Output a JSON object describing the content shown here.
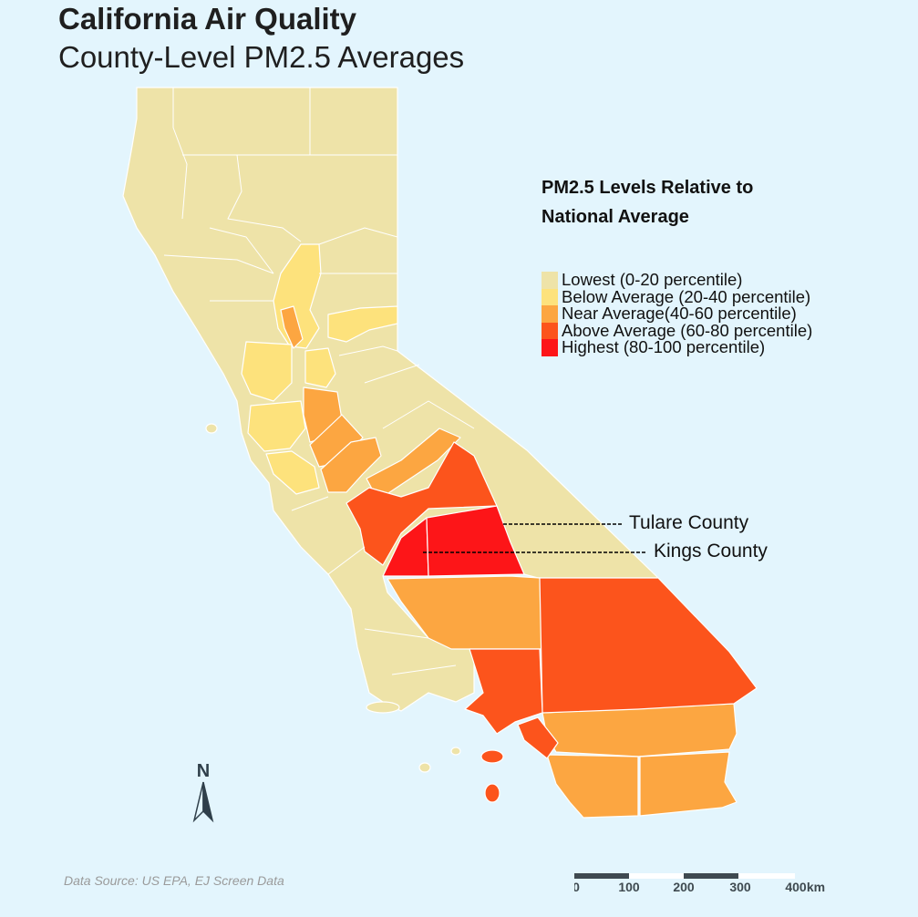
{
  "title": "California Air Quality",
  "subtitle": "County-Level PM2.5 Averages",
  "legend": {
    "title_line1": "PM2.5 Levels Relative to",
    "title_line2": "National Average",
    "items": [
      {
        "label": "Lowest (0-20 percentile)",
        "color": "#eee3a8"
      },
      {
        "label": "Below Average (20-40 percentile)",
        "color": "#fde27c"
      },
      {
        "label": "Near Average(40-60 percentile)",
        "color": "#fca641"
      },
      {
        "label": "Above Average (60-80 percentile)",
        "color": "#fc541c"
      },
      {
        "label": "Highest (80-100 percentile)",
        "color": "#fd1518"
      }
    ]
  },
  "annotations": {
    "tulare": "Tulare County",
    "kings": "Kings County"
  },
  "north_arrow": {
    "label": "N",
    "icon": "north-arrow-icon"
  },
  "scale_bar": {
    "ticks": [
      "0",
      "100",
      "200",
      "300",
      "400"
    ],
    "unit": "km"
  },
  "source": "Data Source: US EPA, EJ Screen Data",
  "colors": {
    "background": "#e3f5fd",
    "county_border": "#ffffff",
    "annotation_line": "#000000"
  }
}
